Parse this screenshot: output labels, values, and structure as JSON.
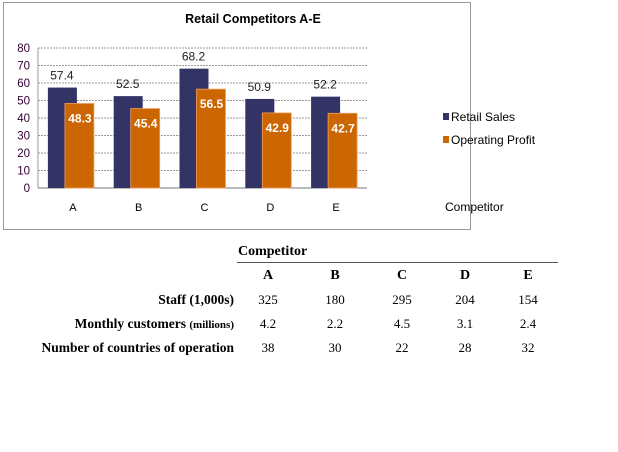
{
  "chart_data": {
    "type": "bar",
    "title": "Retail Competitors A-E",
    "xlabel": "Competitor",
    "ylabel": "",
    "ylim": [
      0,
      80
    ],
    "yticks": [
      0,
      10,
      20,
      30,
      40,
      50,
      60,
      70,
      80
    ],
    "grid": true,
    "legend_position": "right",
    "categories": [
      "A",
      "B",
      "C",
      "D",
      "E"
    ],
    "series": [
      {
        "name": "Retail Sales",
        "color": "#333366",
        "values": [
          57.4,
          52.5,
          68.2,
          50.9,
          52.2
        ]
      },
      {
        "name": "Operating Profit",
        "color": "#CC6600",
        "values": [
          48.3,
          45.4,
          56.5,
          42.9,
          42.7
        ]
      }
    ]
  },
  "table": {
    "header": "Competitor",
    "columns": [
      "A",
      "B",
      "C",
      "D",
      "E"
    ],
    "rows": [
      {
        "label": "Staff (1,000s)",
        "label_small": "",
        "values": [
          "325",
          "180",
          "295",
          "204",
          "154"
        ]
      },
      {
        "label": "Monthly customers ",
        "label_small": "(millions)",
        "values": [
          "4.2",
          "2.2",
          "4.5",
          "3.1",
          "2.4"
        ]
      },
      {
        "label": "Number of countries of operation",
        "label_small": "",
        "values": [
          "38",
          "30",
          "22",
          "28",
          "32"
        ]
      }
    ]
  }
}
